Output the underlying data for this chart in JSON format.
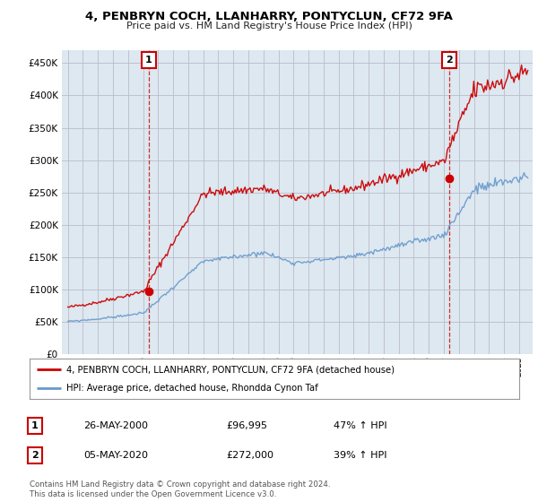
{
  "title": "4, PENBRYN COCH, LLANHARRY, PONTYCLUN, CF72 9FA",
  "subtitle": "Price paid vs. HM Land Registry's House Price Index (HPI)",
  "ylim": [
    0,
    470000
  ],
  "yticks": [
    0,
    50000,
    100000,
    150000,
    200000,
    250000,
    300000,
    350000,
    400000,
    450000
  ],
  "sale1_date": "26-MAY-2000",
  "sale1_price": 96995,
  "sale1_label": "£96,995",
  "sale1_hpi": "47% ↑ HPI",
  "sale2_date": "05-MAY-2020",
  "sale2_price": 272000,
  "sale2_label": "£272,000",
  "sale2_hpi": "39% ↑ HPI",
  "legend_line1": "4, PENBRYN COCH, LLANHARRY, PONTYCLUN, CF72 9FA (detached house)",
  "legend_line2": "HPI: Average price, detached house, Rhondda Cynon Taf",
  "footer": "Contains HM Land Registry data © Crown copyright and database right 2024.\nThis data is licensed under the Open Government Licence v3.0.",
  "red_color": "#cc0000",
  "blue_color": "#6699cc",
  "bg_chart": "#dde8f0",
  "background_color": "#ffffff",
  "grid_color": "#bbbbcc",
  "sale1_x": 2000.37,
  "sale2_x": 2020.34
}
